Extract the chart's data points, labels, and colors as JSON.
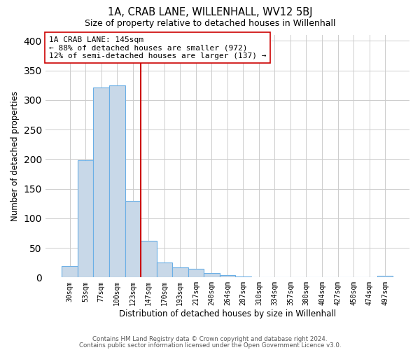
{
  "title": "1A, CRAB LANE, WILLENHALL, WV12 5BJ",
  "subtitle": "Size of property relative to detached houses in Willenhall",
  "xlabel": "Distribution of detached houses by size in Willenhall",
  "ylabel": "Number of detached properties",
  "bar_labels": [
    "30sqm",
    "53sqm",
    "77sqm",
    "100sqm",
    "123sqm",
    "147sqm",
    "170sqm",
    "193sqm",
    "217sqm",
    "240sqm",
    "264sqm",
    "287sqm",
    "310sqm",
    "334sqm",
    "357sqm",
    "380sqm",
    "404sqm",
    "427sqm",
    "450sqm",
    "474sqm",
    "497sqm"
  ],
  "bar_values": [
    19,
    198,
    321,
    325,
    130,
    62,
    25,
    17,
    15,
    8,
    4,
    1,
    0,
    0,
    0,
    0,
    0,
    0,
    0,
    0,
    3
  ],
  "bar_color": "#c8d8e8",
  "bar_edge_color": "#6aafe6",
  "vline_color": "#cc0000",
  "ylim": [
    0,
    410
  ],
  "annotation_line1": "1A CRAB LANE: 145sqm",
  "annotation_line2": "← 88% of detached houses are smaller (972)",
  "annotation_line3": "12% of semi-detached houses are larger (137) →",
  "annotation_box_color": "#ffffff",
  "annotation_box_edge": "#cc0000",
  "footer_line1": "Contains HM Land Registry data © Crown copyright and database right 2024.",
  "footer_line2": "Contains public sector information licensed under the Open Government Licence v3.0.",
  "background_color": "#ffffff",
  "grid_color": "#cccccc"
}
